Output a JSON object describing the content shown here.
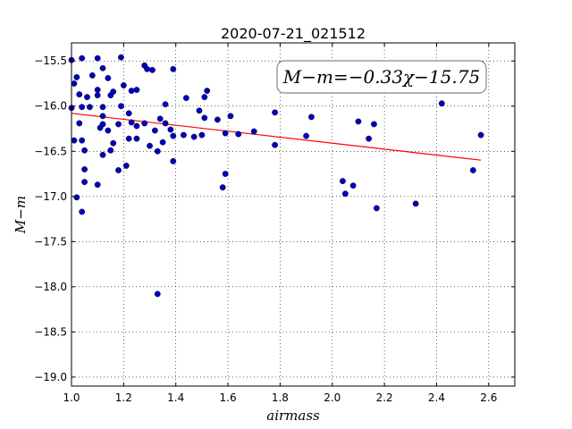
{
  "chart_data": {
    "type": "scatter",
    "title": "2020-07-21_021512",
    "xlabel": "airmass",
    "ylabel": "M−m",
    "xlim": [
      1.0,
      2.7
    ],
    "ylim": [
      -19.1,
      -15.3
    ],
    "y_inverted": true,
    "xticks": [
      "1.0",
      "1.2",
      "1.4",
      "1.6",
      "1.8",
      "2.0",
      "2.2",
      "2.4",
      "2.6"
    ],
    "yticks": [
      "−15.5",
      "−16.0",
      "−16.5",
      "−17.0",
      "−17.5",
      "−18.0",
      "−18.5",
      "−19.0"
    ],
    "grid": true,
    "annotation": "M−m=−0.33χ−15.75",
    "fit": {
      "slope": -0.33,
      "intercept": -15.75,
      "x_range": [
        1.0,
        2.57
      ],
      "color": "#ff0000"
    },
    "point_color": "#0000bf",
    "points": [
      {
        "x": 1.0,
        "y": -15.49
      },
      {
        "x": 1.0,
        "y": -16.02
      },
      {
        "x": 1.01,
        "y": -15.75
      },
      {
        "x": 1.01,
        "y": -16.38
      },
      {
        "x": 1.02,
        "y": -15.68
      },
      {
        "x": 1.02,
        "y": -17.01
      },
      {
        "x": 1.03,
        "y": -15.87
      },
      {
        "x": 1.03,
        "y": -16.19
      },
      {
        "x": 1.04,
        "y": -15.47
      },
      {
        "x": 1.04,
        "y": -16.01
      },
      {
        "x": 1.04,
        "y": -16.38
      },
      {
        "x": 1.04,
        "y": -17.17
      },
      {
        "x": 1.05,
        "y": -16.49
      },
      {
        "x": 1.05,
        "y": -16.84
      },
      {
        "x": 1.05,
        "y": -16.7
      },
      {
        "x": 1.06,
        "y": -15.9
      },
      {
        "x": 1.07,
        "y": -16.01
      },
      {
        "x": 1.08,
        "y": -15.66
      },
      {
        "x": 1.1,
        "y": -15.47
      },
      {
        "x": 1.1,
        "y": -15.82
      },
      {
        "x": 1.1,
        "y": -15.88
      },
      {
        "x": 1.1,
        "y": -16.87
      },
      {
        "x": 1.11,
        "y": -16.24
      },
      {
        "x": 1.12,
        "y": -15.58
      },
      {
        "x": 1.12,
        "y": -16.01
      },
      {
        "x": 1.12,
        "y": -16.11
      },
      {
        "x": 1.12,
        "y": -16.2
      },
      {
        "x": 1.12,
        "y": -16.54
      },
      {
        "x": 1.14,
        "y": -15.69
      },
      {
        "x": 1.14,
        "y": -16.27
      },
      {
        "x": 1.15,
        "y": -15.88
      },
      {
        "x": 1.15,
        "y": -16.49
      },
      {
        "x": 1.16,
        "y": -15.84
      },
      {
        "x": 1.16,
        "y": -16.41
      },
      {
        "x": 1.18,
        "y": -16.2
      },
      {
        "x": 1.18,
        "y": -16.71
      },
      {
        "x": 1.19,
        "y": -15.46
      },
      {
        "x": 1.19,
        "y": -16.0
      },
      {
        "x": 1.2,
        "y": -15.77
      },
      {
        "x": 1.21,
        "y": -16.66
      },
      {
        "x": 1.22,
        "y": -16.08
      },
      {
        "x": 1.22,
        "y": -16.36
      },
      {
        "x": 1.23,
        "y": -15.83
      },
      {
        "x": 1.23,
        "y": -16.18
      },
      {
        "x": 1.25,
        "y": -15.82
      },
      {
        "x": 1.25,
        "y": -16.22
      },
      {
        "x": 1.25,
        "y": -16.36
      },
      {
        "x": 1.28,
        "y": -15.55
      },
      {
        "x": 1.28,
        "y": -16.19
      },
      {
        "x": 1.29,
        "y": -15.59
      },
      {
        "x": 1.3,
        "y": -16.44
      },
      {
        "x": 1.31,
        "y": -15.6
      },
      {
        "x": 1.32,
        "y": -16.27
      },
      {
        "x": 1.33,
        "y": -16.5
      },
      {
        "x": 1.33,
        "y": -18.08
      },
      {
        "x": 1.34,
        "y": -16.14
      },
      {
        "x": 1.35,
        "y": -16.4
      },
      {
        "x": 1.36,
        "y": -15.98
      },
      {
        "x": 1.36,
        "y": -16.19
      },
      {
        "x": 1.38,
        "y": -16.26
      },
      {
        "x": 1.39,
        "y": -15.59
      },
      {
        "x": 1.39,
        "y": -16.33
      },
      {
        "x": 1.39,
        "y": -16.61
      },
      {
        "x": 1.43,
        "y": -16.32
      },
      {
        "x": 1.44,
        "y": -15.91
      },
      {
        "x": 1.47,
        "y": -16.34
      },
      {
        "x": 1.49,
        "y": -16.05
      },
      {
        "x": 1.5,
        "y": -16.32
      },
      {
        "x": 1.51,
        "y": -16.13
      },
      {
        "x": 1.51,
        "y": -15.9
      },
      {
        "x": 1.52,
        "y": -15.83
      },
      {
        "x": 1.56,
        "y": -16.15
      },
      {
        "x": 1.58,
        "y": -16.9
      },
      {
        "x": 1.59,
        "y": -16.3
      },
      {
        "x": 1.59,
        "y": -16.75
      },
      {
        "x": 1.61,
        "y": -16.11
      },
      {
        "x": 1.64,
        "y": -16.31
      },
      {
        "x": 1.7,
        "y": -16.28
      },
      {
        "x": 1.78,
        "y": -16.07
      },
      {
        "x": 1.78,
        "y": -16.43
      },
      {
        "x": 1.9,
        "y": -16.33
      },
      {
        "x": 1.92,
        "y": -16.12
      },
      {
        "x": 2.04,
        "y": -16.83
      },
      {
        "x": 2.05,
        "y": -16.97
      },
      {
        "x": 2.08,
        "y": -16.88
      },
      {
        "x": 2.1,
        "y": -16.17
      },
      {
        "x": 2.14,
        "y": -16.36
      },
      {
        "x": 2.16,
        "y": -16.2
      },
      {
        "x": 2.17,
        "y": -17.13
      },
      {
        "x": 2.32,
        "y": -17.08
      },
      {
        "x": 2.42,
        "y": -15.97
      },
      {
        "x": 2.54,
        "y": -16.71
      },
      {
        "x": 2.57,
        "y": -16.32
      }
    ]
  }
}
